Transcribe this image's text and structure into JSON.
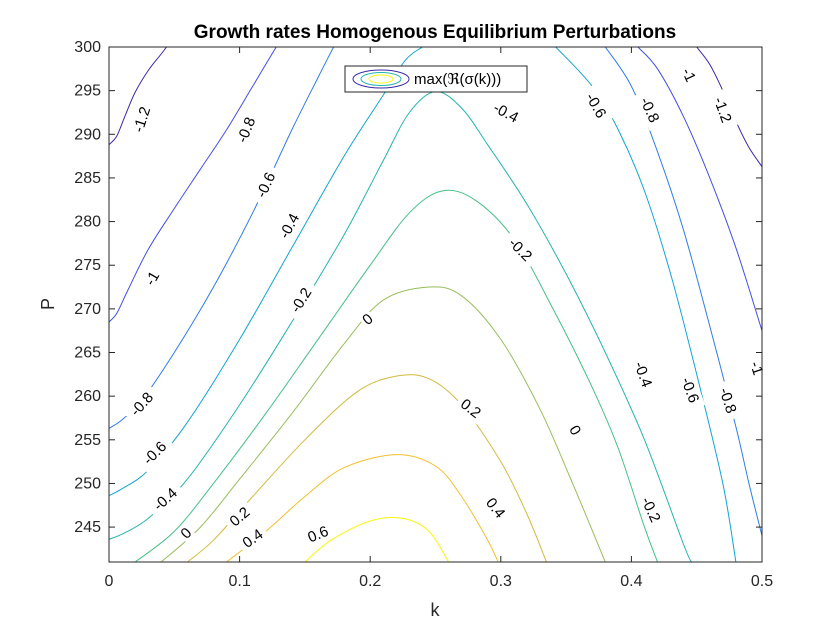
{
  "chart_data": {
    "type": "contour",
    "title": "Growth rates Homogenous Equilibrium Perturbations",
    "xlabel": "k",
    "ylabel": "P",
    "xlim": [
      0,
      0.5
    ],
    "ylim": [
      241,
      300
    ],
    "xticks": [
      "0",
      "0.1",
      "0.2",
      "0.3",
      "0.4",
      "0.5"
    ],
    "yticks": [
      "245",
      "250",
      "255",
      "260",
      "265",
      "270",
      "275",
      "280",
      "285",
      "290",
      "295",
      "300"
    ],
    "legend": {
      "label": "max(ℜ(σ(k)))",
      "position": "top"
    },
    "grid": false,
    "colormap": "parula",
    "levels": [
      {
        "value": -1.2,
        "color": "#3e26a8",
        "paths": [
          [
            [
              0.0,
              288.8
            ],
            [
              0.006,
              289.8
            ],
            [
              0.012,
              292
            ],
            [
              0.02,
              294.8
            ],
            [
              0.03,
              297.3
            ],
            [
              0.04,
              299.2
            ],
            [
              0.044,
              300
            ]
          ],
          [
            [
              0.45,
              300
            ],
            [
              0.46,
              298
            ],
            [
              0.47,
              295
            ],
            [
              0.48,
              291.5
            ],
            [
              0.49,
              288.5
            ],
            [
              0.5,
              286.3
            ]
          ]
        ]
      },
      {
        "value": -1.0,
        "color": "#3f51e0",
        "paths": [
          [
            [
              0.0,
              268.5
            ],
            [
              0.006,
              269.5
            ],
            [
              0.014,
              272
            ],
            [
              0.03,
              276.8
            ],
            [
              0.05,
              281.5
            ],
            [
              0.07,
              286
            ],
            [
              0.09,
              290.5
            ],
            [
              0.11,
              295.5
            ],
            [
              0.12,
              298
            ],
            [
              0.128,
              300
            ]
          ],
          [
            [
              0.405,
              300
            ],
            [
              0.42,
              297.5
            ],
            [
              0.44,
              292
            ],
            [
              0.46,
              285
            ],
            [
              0.48,
              277
            ],
            [
              0.5,
              267.5
            ]
          ]
        ]
      },
      {
        "value": -0.8,
        "color": "#2d7de8",
        "paths": [
          [
            [
              0.0,
              256.3
            ],
            [
              0.01,
              257.3
            ],
            [
              0.025,
              259.5
            ],
            [
              0.05,
              265
            ],
            [
              0.08,
              272.5
            ],
            [
              0.11,
              281
            ],
            [
              0.14,
              290.5
            ],
            [
              0.16,
              296.5
            ],
            [
              0.172,
              300
            ]
          ],
          [
            [
              0.38,
              300
            ],
            [
              0.4,
              295.5
            ],
            [
              0.42,
              288
            ],
            [
              0.44,
              279
            ],
            [
              0.46,
              268
            ],
            [
              0.48,
              256.5
            ],
            [
              0.49,
              250
            ],
            [
              0.5,
              244
            ]
          ]
        ]
      },
      {
        "value": -0.6,
        "color": "#12a4d3",
        "paths": [
          [
            [
              0.0,
              248.6
            ],
            [
              0.01,
              249.4
            ],
            [
              0.03,
              251.5
            ],
            [
              0.06,
              257
            ],
            [
              0.1,
              266.5
            ],
            [
              0.14,
              277
            ],
            [
              0.18,
              287.5
            ],
            [
              0.21,
              294.5
            ],
            [
              0.227,
              298.5
            ],
            [
              0.24,
              300
            ]
          ],
          [
            [
              0.342,
              300
            ],
            [
              0.37,
              295.5
            ],
            [
              0.39,
              290.5
            ],
            [
              0.41,
              283.5
            ],
            [
              0.43,
              274
            ],
            [
              0.45,
              262.5
            ],
            [
              0.47,
              250
            ],
            [
              0.48,
              241
            ]
          ]
        ]
      },
      {
        "value": -0.4,
        "color": "#24b5b0",
        "paths": [
          [
            [
              0.0,
              243.6
            ],
            [
              0.01,
              244.2
            ],
            [
              0.03,
              246
            ],
            [
              0.06,
              250.5
            ],
            [
              0.1,
              259
            ],
            [
              0.14,
              268.5
            ],
            [
              0.18,
              278.5
            ],
            [
              0.21,
              287
            ],
            [
              0.23,
              292.5
            ],
            [
              0.25,
              294.9
            ],
            [
              0.27,
              293
            ],
            [
              0.29,
              288.8
            ],
            [
              0.32,
              282
            ],
            [
              0.35,
              274
            ],
            [
              0.38,
              265
            ],
            [
              0.41,
              255
            ],
            [
              0.44,
              243
            ],
            [
              0.446,
              241
            ]
          ]
        ]
      },
      {
        "value": -0.2,
        "color": "#44c185",
        "paths": [
          [
            [
              0.02,
              241
            ],
            [
              0.05,
              244.5
            ],
            [
              0.08,
              250
            ],
            [
              0.12,
              258
            ],
            [
              0.16,
              266.5
            ],
            [
              0.2,
              275
            ],
            [
              0.23,
              281
            ],
            [
              0.255,
              283.5
            ],
            [
              0.28,
              282.5
            ],
            [
              0.31,
              278
            ],
            [
              0.34,
              270
            ],
            [
              0.37,
              261
            ],
            [
              0.39,
              254
            ],
            [
              0.41,
              245
            ],
            [
              0.42,
              241
            ]
          ]
        ]
      },
      {
        "value": 0.0,
        "color": "#96bf5a",
        "paths": [
          [
            [
              0.04,
              241
            ],
            [
              0.07,
              245
            ],
            [
              0.1,
              250.5
            ],
            [
              0.14,
              258
            ],
            [
              0.18,
              266
            ],
            [
              0.21,
              271
            ],
            [
              0.245,
              272.5
            ],
            [
              0.27,
              271.5
            ],
            [
              0.3,
              266.5
            ],
            [
              0.33,
              258.5
            ],
            [
              0.355,
              250
            ],
            [
              0.38,
              241
            ]
          ]
        ]
      },
      {
        "value": 0.2,
        "color": "#d2ba40",
        "paths": [
          [
            [
              0.06,
              241
            ],
            [
              0.08,
              243.5
            ],
            [
              0.11,
              248.5
            ],
            [
              0.15,
              255
            ],
            [
              0.19,
              260.5
            ],
            [
              0.22,
              262.3
            ],
            [
              0.245,
              262
            ],
            [
              0.27,
              259
            ],
            [
              0.3,
              252.5
            ],
            [
              0.32,
              246.5
            ],
            [
              0.335,
              241
            ]
          ]
        ]
      },
      {
        "value": 0.4,
        "color": "#f4c02e",
        "paths": [
          [
            [
              0.09,
              241
            ],
            [
              0.12,
              244.5
            ],
            [
              0.15,
              248.5
            ],
            [
              0.18,
              251.8
            ],
            [
              0.22,
              253.3
            ],
            [
              0.25,
              252
            ],
            [
              0.27,
              248.5
            ],
            [
              0.29,
              243.5
            ],
            [
              0.298,
              241
            ]
          ]
        ]
      },
      {
        "value": 0.6,
        "color": "#f9f80e",
        "paths": [
          [
            [
              0.15,
              241
            ],
            [
              0.17,
              243.5
            ],
            [
              0.2,
              245.7
            ],
            [
              0.225,
              246
            ],
            [
              0.245,
              244.5
            ],
            [
              0.26,
              241
            ]
          ]
        ]
      }
    ],
    "labels": [
      {
        "text": "-1.2",
        "x": 0.025,
        "y": 291.7,
        "angle": -72
      },
      {
        "text": "-0.8",
        "x": 0.105,
        "y": 290.5,
        "angle": -68
      },
      {
        "text": "-0.6",
        "x": 0.12,
        "y": 284.2,
        "angle": -65
      },
      {
        "text": "-0.4",
        "x": 0.138,
        "y": 279.5,
        "angle": -62
      },
      {
        "text": "-1",
        "x": 0.033,
        "y": 273.5,
        "angle": -60
      },
      {
        "text": "-0.2",
        "x": 0.147,
        "y": 271,
        "angle": -58
      },
      {
        "text": "0",
        "x": 0.198,
        "y": 268.8,
        "angle": -40
      },
      {
        "text": "-0.8",
        "x": 0.025,
        "y": 259.1,
        "angle": -48
      },
      {
        "text": "-0.6",
        "x": 0.035,
        "y": 253.5,
        "angle": -45
      },
      {
        "text": "-0.4",
        "x": 0.043,
        "y": 248.2,
        "angle": -42
      },
      {
        "text": "0",
        "x": 0.059,
        "y": 244.3,
        "angle": -45
      },
      {
        "text": "0.2",
        "x": 0.1,
        "y": 246.2,
        "angle": -40
      },
      {
        "text": "0.4",
        "x": 0.11,
        "y": 243.7,
        "angle": -35
      },
      {
        "text": "0.6",
        "x": 0.16,
        "y": 244.2,
        "angle": -22
      },
      {
        "text": "-0.4",
        "x": 0.304,
        "y": 292.5,
        "angle": 28
      },
      {
        "text": "-0.6",
        "x": 0.373,
        "y": 293.3,
        "angle": 60
      },
      {
        "text": "-0.8",
        "x": 0.414,
        "y": 292.8,
        "angle": 65
      },
      {
        "text": "-1",
        "x": 0.444,
        "y": 296.8,
        "angle": 65
      },
      {
        "text": "-1.2",
        "x": 0.47,
        "y": 292.8,
        "angle": 70
      },
      {
        "text": "-0.2",
        "x": 0.315,
        "y": 276.8,
        "angle": 45
      },
      {
        "text": "0.2",
        "x": 0.277,
        "y": 258.6,
        "angle": 38
      },
      {
        "text": "0",
        "x": 0.357,
        "y": 256.1,
        "angle": 60
      },
      {
        "text": "0.4",
        "x": 0.296,
        "y": 247.2,
        "angle": 52
      },
      {
        "text": "-0.4",
        "x": 0.409,
        "y": 262.5,
        "angle": 70
      },
      {
        "text": "-0.6",
        "x": 0.445,
        "y": 260.7,
        "angle": 70
      },
      {
        "text": "-0.8",
        "x": 0.474,
        "y": 259.5,
        "angle": 72
      },
      {
        "text": "-1",
        "x": 0.496,
        "y": 263.2,
        "angle": 72
      },
      {
        "text": "-0.2",
        "x": 0.415,
        "y": 247,
        "angle": 65
      }
    ]
  }
}
